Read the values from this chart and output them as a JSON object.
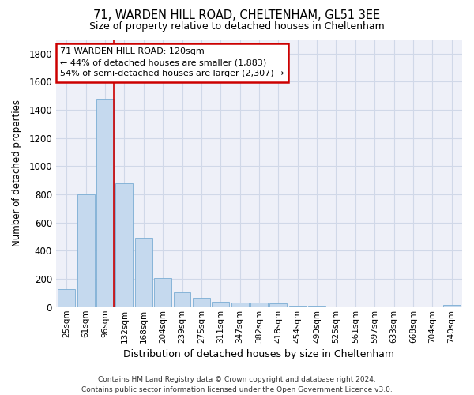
{
  "title": "71, WARDEN HILL ROAD, CHELTENHAM, GL51 3EE",
  "subtitle": "Size of property relative to detached houses in Cheltenham",
  "xlabel": "Distribution of detached houses by size in Cheltenham",
  "ylabel": "Number of detached properties",
  "footer_line1": "Contains HM Land Registry data © Crown copyright and database right 2024.",
  "footer_line2": "Contains public sector information licensed under the Open Government Licence v3.0.",
  "bar_labels": [
    "25sqm",
    "61sqm",
    "96sqm",
    "132sqm",
    "168sqm",
    "204sqm",
    "239sqm",
    "275sqm",
    "311sqm",
    "347sqm",
    "382sqm",
    "418sqm",
    "454sqm",
    "490sqm",
    "525sqm",
    "561sqm",
    "597sqm",
    "633sqm",
    "668sqm",
    "704sqm",
    "740sqm"
  ],
  "bar_values": [
    125,
    800,
    1480,
    880,
    490,
    205,
    105,
    65,
    40,
    35,
    30,
    25,
    10,
    12,
    6,
    5,
    5,
    5,
    5,
    5,
    15
  ],
  "bar_color": "#c5d9ee",
  "bar_edge_color": "#7aadd4",
  "grid_color": "#d0d8e8",
  "background_color": "#ffffff",
  "plot_bg_color": "#eef0f8",
  "annotation_line1": "71 WARDEN HILL ROAD: 120sqm",
  "annotation_line2": "← 44% of detached houses are smaller (1,883)",
  "annotation_line3": "54% of semi-detached houses are larger (2,307) →",
  "annotation_box_color": "#ffffff",
  "annotation_border_color": "#cc0000",
  "red_line_x": 2.45,
  "ylim": [
    0,
    1900
  ],
  "yticks": [
    0,
    200,
    400,
    600,
    800,
    1000,
    1200,
    1400,
    1600,
    1800
  ]
}
